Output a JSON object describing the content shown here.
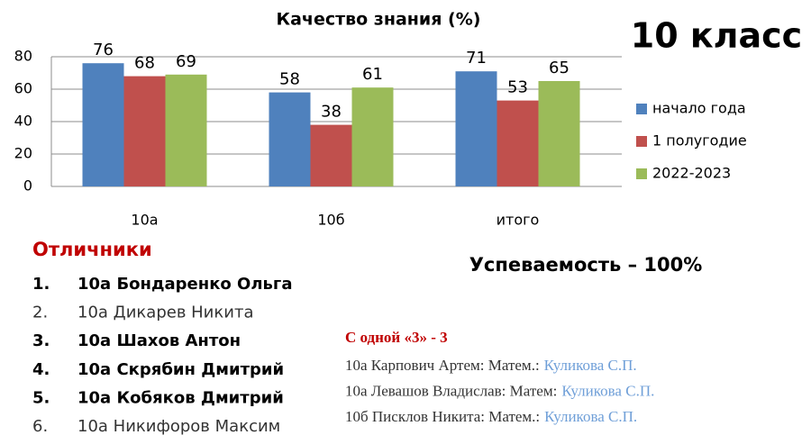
{
  "chart_data": {
    "type": "bar",
    "title": "Качество знания (%)",
    "categories": [
      "10а",
      "10б",
      "итого"
    ],
    "series": [
      {
        "name": "начало года",
        "color": "#4f81bd",
        "values": [
          76,
          58,
          71
        ]
      },
      {
        "name": "1 полугодие",
        "color": "#c0504d",
        "values": [
          68,
          38,
          53
        ]
      },
      {
        "name": "2022-2023",
        "color": "#9bbb59",
        "values": [
          69,
          61,
          65
        ]
      }
    ],
    "ylim": [
      0,
      80
    ],
    "yticks": [
      0,
      20,
      40,
      60,
      80
    ],
    "grid": true,
    "legend": "right"
  },
  "heading": "10 класс",
  "honors": {
    "title": "Отличники",
    "items": [
      {
        "marker": "1.",
        "text": "10а Бондаренко Ольга",
        "bold": true
      },
      {
        "marker": "2.",
        "text": "10а Дикарев Никита",
        "bold": false
      },
      {
        "marker": "3.",
        "text": "10а Шахов Антон",
        "bold": true
      },
      {
        "marker": "4.",
        "text": "10а Скрябин Дмитрий",
        "bold": true
      },
      {
        "marker": "5.",
        "text": "10а Кобяков Дмитрий",
        "bold": true
      },
      {
        "marker": "6.",
        "text": "10а Никифоров Максим",
        "bold": false
      }
    ]
  },
  "progress": "Успеваемость – 100%",
  "one_three": {
    "title": "С одной «3» - 3",
    "items": [
      {
        "text": "10а Карпович Артем: Матем.:",
        "teacher": "Куликова С.П."
      },
      {
        "text": "10а Левашов Владислав: Матем:",
        "teacher": "Куликова С.П."
      },
      {
        "text": "10б Писклов Никита: Матем.:",
        "teacher": "Куликова С.П."
      }
    ]
  }
}
